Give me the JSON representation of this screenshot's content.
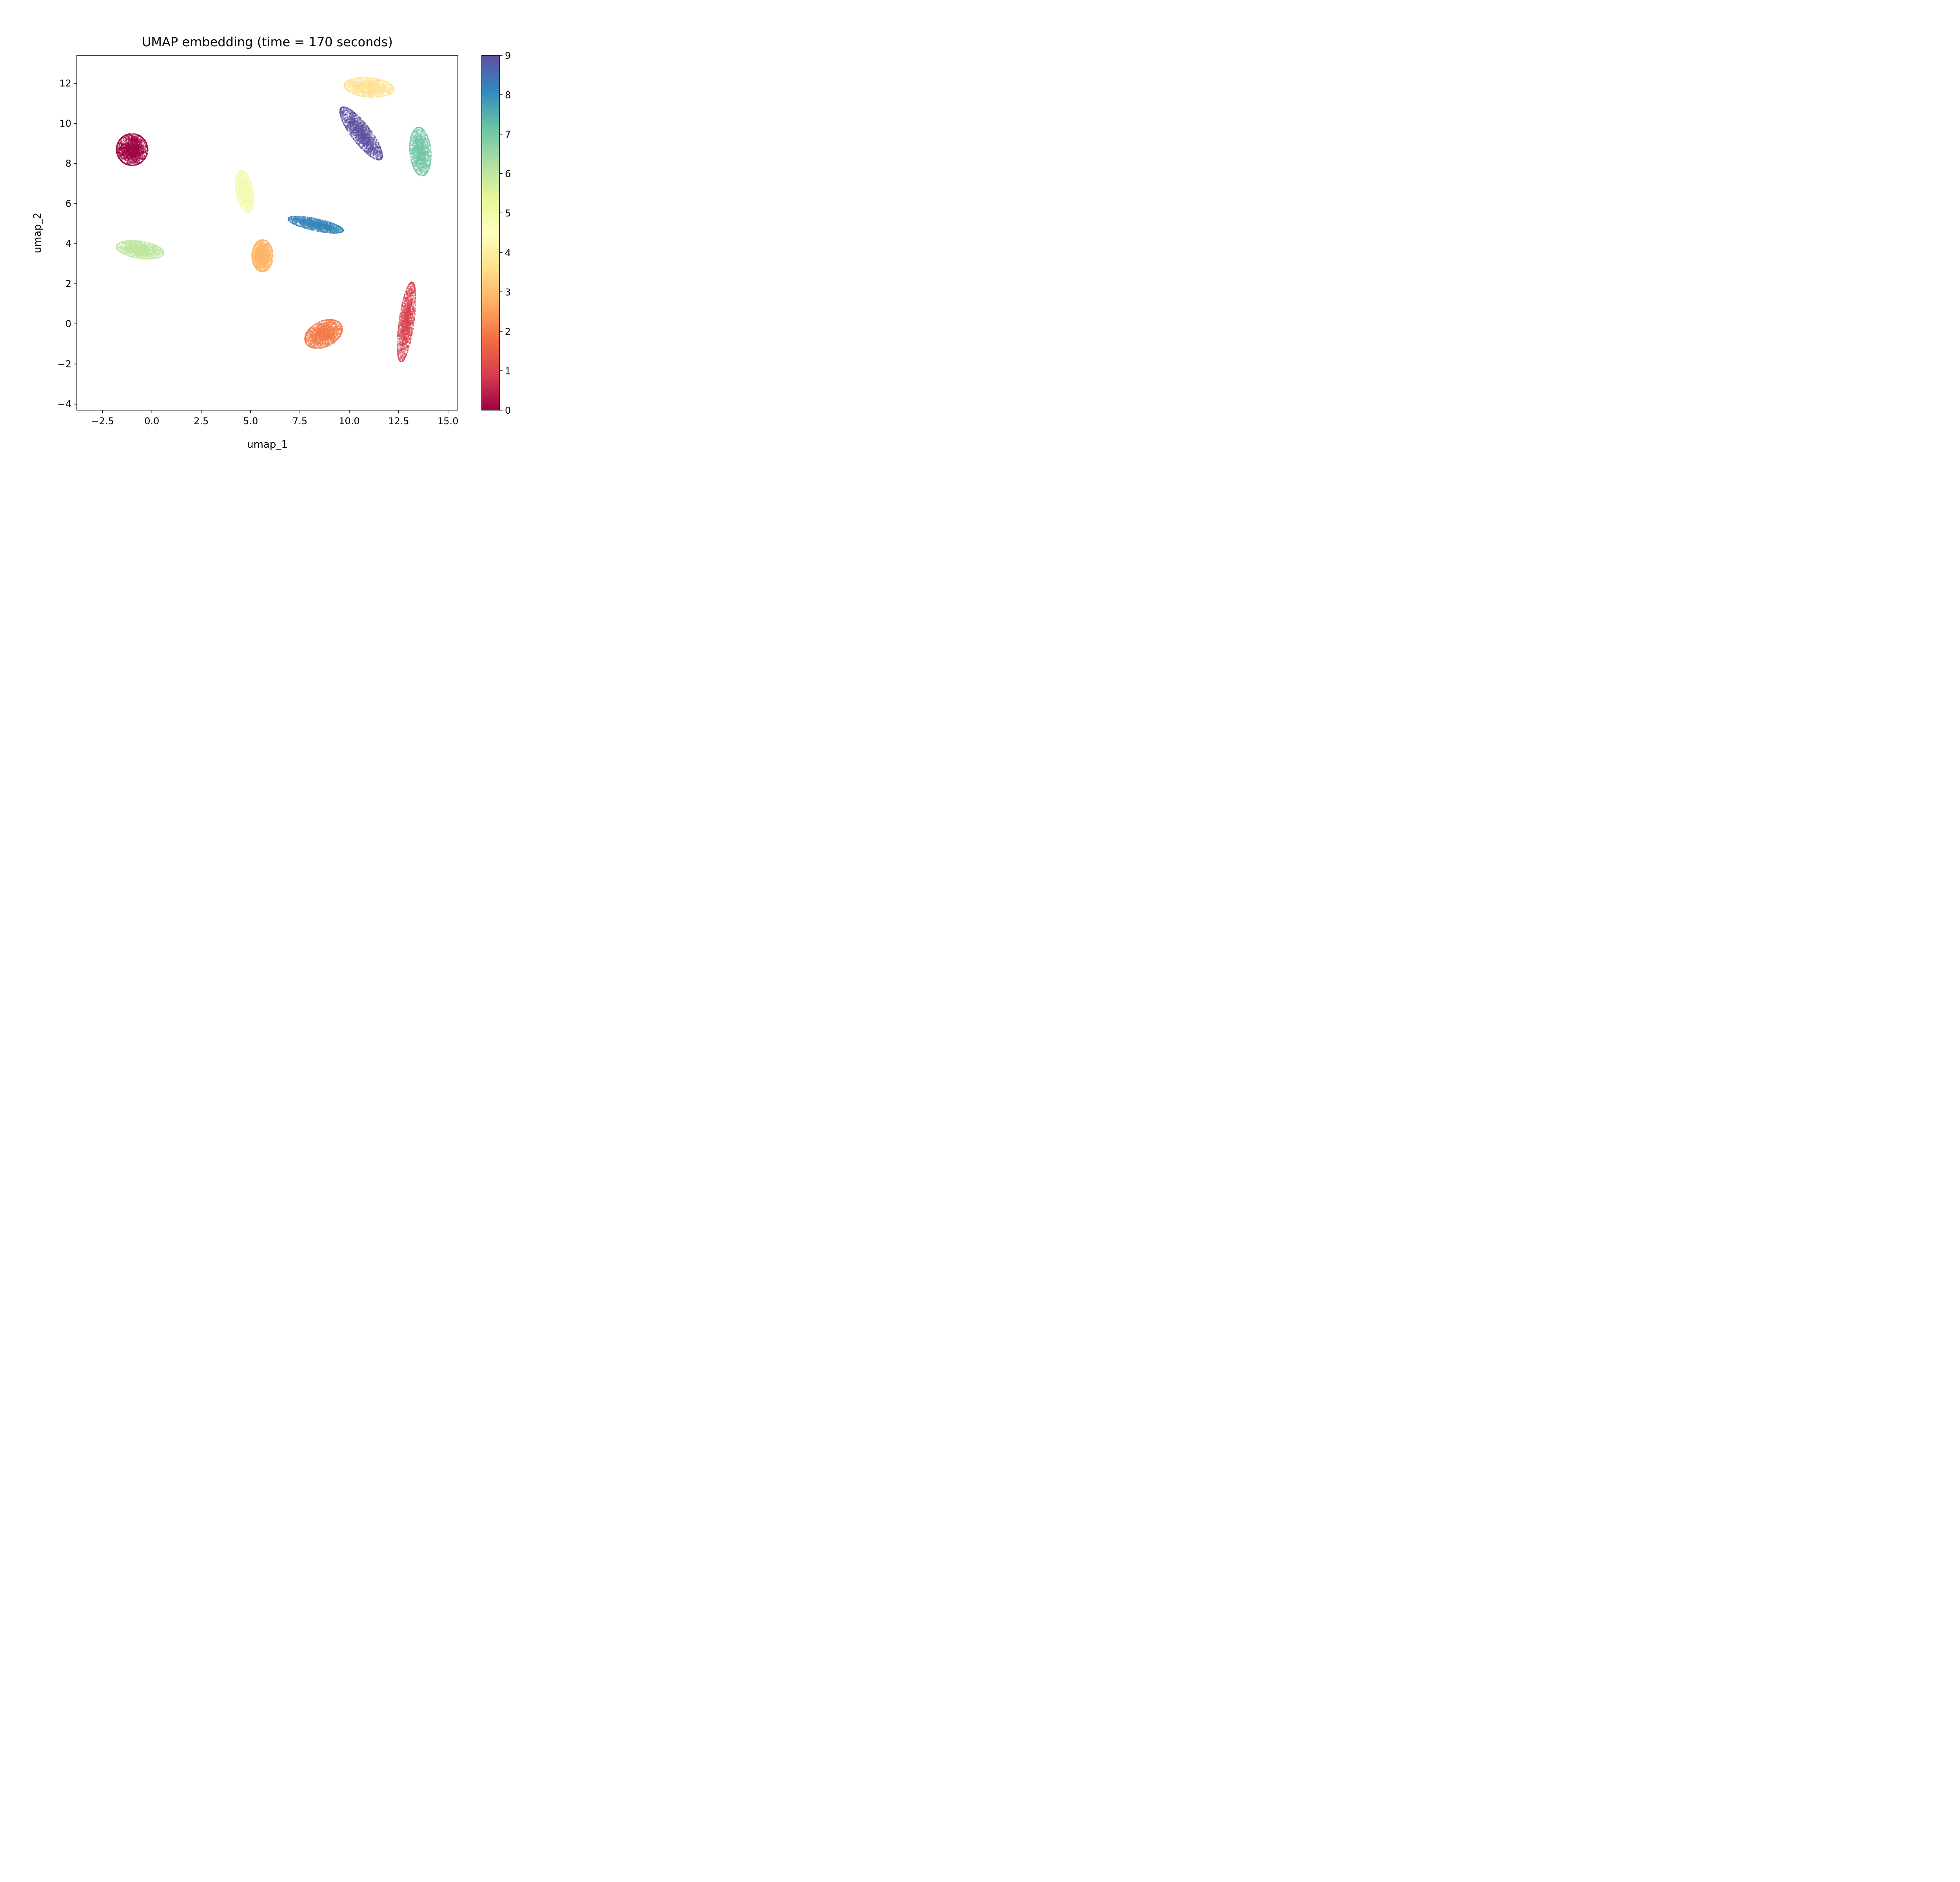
{
  "chart_data": {
    "type": "scatter",
    "title": "UMAP embedding (time = 170 seconds)",
    "xlabel": "umap_1",
    "ylabel": "umap_2",
    "xlim": [
      -3.8,
      15.5
    ],
    "ylim": [
      -4.3,
      13.4
    ],
    "xticks": [
      -2.5,
      0.0,
      2.5,
      5.0,
      7.5,
      10.0,
      12.5,
      15.0
    ],
    "xtick_labels": [
      "−2.5",
      "0.0",
      "2.5",
      "5.0",
      "7.5",
      "10.0",
      "12.5",
      "15.0"
    ],
    "yticks": [
      -4,
      -2,
      0,
      2,
      4,
      6,
      8,
      10,
      12
    ],
    "ytick_labels": [
      "−4",
      "−2",
      "0",
      "2",
      "4",
      "6",
      "8",
      "10",
      "12"
    ],
    "grid": false,
    "colormap": "Spectral",
    "colorbar": {
      "range": [
        0,
        9
      ],
      "ticks": [
        0,
        1,
        2,
        3,
        4,
        5,
        6,
        7,
        8,
        9
      ],
      "tick_labels": [
        "0",
        "1",
        "2",
        "3",
        "4",
        "5",
        "6",
        "7",
        "8",
        "9"
      ],
      "stops": [
        "#9e0142",
        "#d53e4f",
        "#f46d43",
        "#fdae61",
        "#fee08b",
        "#ffffbf",
        "#e6f598",
        "#abdda4",
        "#66c2a5",
        "#3288bd",
        "#5e4fa2"
      ]
    },
    "clusters": [
      {
        "label": 0,
        "color": "#9e0142",
        "center": [
          -1.0,
          8.7
        ],
        "spread": [
          0.75,
          0.75
        ],
        "angle": 0,
        "n": 2200
      },
      {
        "label": 1,
        "color": "#d8434e",
        "center": [
          12.9,
          0.1
        ],
        "spread": [
          0.35,
          1.9
        ],
        "angle": -8,
        "n": 2200
      },
      {
        "label": 2,
        "color": "#f57a47",
        "center": [
          8.7,
          -0.5
        ],
        "spread": [
          0.95,
          0.6
        ],
        "angle": 25,
        "n": 2200
      },
      {
        "label": 3,
        "color": "#fdb466",
        "center": [
          5.6,
          3.4
        ],
        "spread": [
          0.5,
          0.75
        ],
        "angle": 0,
        "n": 2000
      },
      {
        "label": 4,
        "color": "#fee191",
        "center": [
          11.0,
          11.8
        ],
        "spread": [
          1.2,
          0.45
        ],
        "angle": -5,
        "n": 2000
      },
      {
        "label": 5,
        "color": "#f2f9af",
        "center": [
          4.7,
          6.6
        ],
        "spread": [
          0.4,
          1.0
        ],
        "angle": 10,
        "n": 1800
      },
      {
        "label": 6,
        "color": "#bfe59e",
        "center": [
          -0.6,
          3.7
        ],
        "spread": [
          1.15,
          0.4
        ],
        "angle": -8,
        "n": 2000
      },
      {
        "label": 7,
        "color": "#73c6a5",
        "center": [
          13.6,
          8.6
        ],
        "spread": [
          0.5,
          1.15
        ],
        "angle": 5,
        "n": 2000
      },
      {
        "label": 8,
        "color": "#3a85bb",
        "center": [
          8.3,
          4.95
        ],
        "spread": [
          1.35,
          0.28
        ],
        "angle": -12,
        "n": 2000
      },
      {
        "label": 9,
        "color": "#5e4fa2",
        "center": [
          10.6,
          9.5
        ],
        "spread": [
          0.45,
          1.55
        ],
        "angle": 38,
        "n": 2200
      }
    ]
  }
}
